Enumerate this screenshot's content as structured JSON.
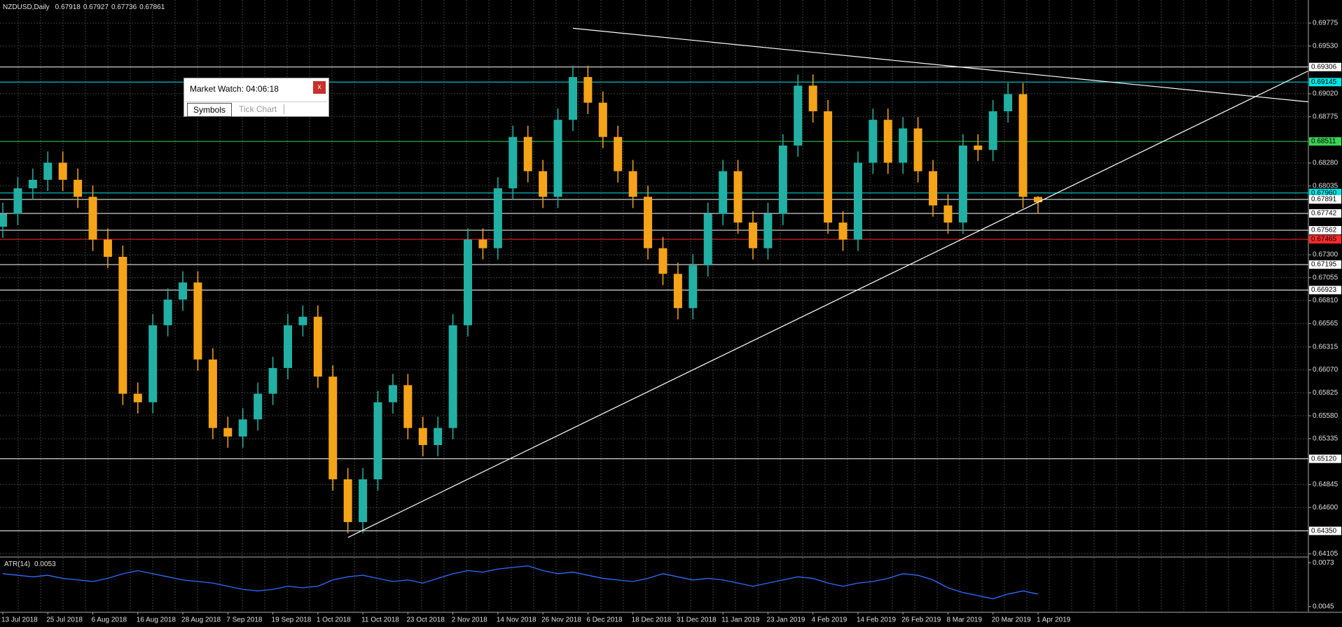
{
  "chart_data": {
    "type": "candlestick",
    "title": "NZDUSD,Daily",
    "categories": [
      "13 Jul 2018",
      null,
      null,
      "25 Jul 2018",
      null,
      null,
      "6 Aug 2018",
      null,
      null,
      "16 Aug 2018",
      null,
      null,
      "28 Aug 2018",
      null,
      null,
      "7 Sep 2018",
      null,
      null,
      "19 Sep 2018",
      null,
      null,
      "1 Oct 2018",
      null,
      null,
      "11 Oct 2018",
      null,
      null,
      "23 Oct 2018",
      null,
      null,
      "2 Nov 2018",
      null,
      null,
      "14 Nov 2018",
      null,
      null,
      "26 Nov 2018",
      null,
      null,
      "6 Dec 2018",
      null,
      null,
      "18 Dec 2018",
      null,
      null,
      "31 Dec 2018",
      null,
      null,
      "11 Jan 2019",
      null,
      null,
      "23 Jan 2019",
      null,
      null,
      "4 Feb 2019",
      null,
      null,
      "14 Feb 2019",
      null,
      null,
      "26 Feb 2019",
      null,
      null,
      "8 Mar 2019",
      null,
      null,
      "20 Mar 2019",
      null,
      null,
      "1 Apr 2019"
    ],
    "open": [
      0.676,
      0.67736,
      0.6801,
      0.68101,
      0.68284,
      0.68101,
      0.67919,
      0.67461,
      0.67278,
      0.65815,
      0.65724,
      0.66547,
      0.66821,
      0.67004,
      0.66181,
      0.65449,
      0.65358,
      0.65541,
      0.65815,
      0.6609,
      0.66547,
      0.66638,
      0.65998,
      0.64901,
      0.64444,
      0.64901,
      0.65724,
      0.65907,
      0.65449,
      0.65267,
      0.65449,
      0.66547,
      0.67461,
      0.6737,
      0.6801,
      0.68559,
      0.68193,
      0.67919,
      0.68742,
      0.69199,
      0.68925,
      0.68559,
      0.68193,
      0.67919,
      0.6737,
      0.67096,
      0.6673,
      0.67187,
      0.67736,
      0.68193,
      0.67644,
      0.6737,
      0.67736,
      0.68467,
      0.69107,
      0.68833,
      0.67644,
      0.67461,
      0.68284,
      0.68742,
      0.68284,
      0.6865,
      0.68193,
      0.67827,
      0.67644,
      0.68467,
      0.6842,
      0.68833,
      0.69016,
      0.67918
    ],
    "high": [
      0.67856,
      0.6813,
      0.68221,
      0.68404,
      0.68404,
      0.68221,
      0.68039,
      0.67581,
      0.67398,
      0.65935,
      0.66667,
      0.66941,
      0.67124,
      0.67124,
      0.66301,
      0.65569,
      0.65661,
      0.65935,
      0.6621,
      0.66667,
      0.66758,
      0.66758,
      0.66118,
      0.65021,
      0.65021,
      0.65844,
      0.66027,
      0.66027,
      0.65569,
      0.65569,
      0.66667,
      0.67581,
      0.67581,
      0.6813,
      0.68679,
      0.68679,
      0.68313,
      0.68862,
      0.69319,
      0.69319,
      0.69045,
      0.68679,
      0.68313,
      0.68039,
      0.6749,
      0.67216,
      0.67307,
      0.67856,
      0.68313,
      0.68313,
      0.67764,
      0.67856,
      0.68587,
      0.69227,
      0.69227,
      0.68953,
      0.67764,
      0.68404,
      0.68862,
      0.68862,
      0.6877,
      0.6877,
      0.68313,
      0.67947,
      0.68587,
      0.68587,
      0.68953,
      0.69136,
      0.69136,
      0.67927
    ],
    "low": [
      0.6748,
      0.67616,
      0.6789,
      0.67981,
      0.67981,
      0.67799,
      0.67341,
      0.67158,
      0.65695,
      0.65604,
      0.65604,
      0.66427,
      0.66701,
      0.66061,
      0.65329,
      0.65238,
      0.65238,
      0.65421,
      0.65695,
      0.6597,
      0.66427,
      0.65878,
      0.64781,
      0.64324,
      0.64324,
      0.64781,
      0.65604,
      0.65329,
      0.65147,
      0.65147,
      0.65329,
      0.66427,
      0.6725,
      0.6725,
      0.6789,
      0.68073,
      0.67799,
      0.67799,
      0.68622,
      0.68805,
      0.68439,
      0.68073,
      0.67799,
      0.6725,
      0.66976,
      0.6661,
      0.6661,
      0.67067,
      0.67616,
      0.67524,
      0.6725,
      0.6725,
      0.67616,
      0.68347,
      0.68713,
      0.67524,
      0.67341,
      0.67341,
      0.68164,
      0.68164,
      0.68164,
      0.68073,
      0.67707,
      0.67524,
      0.67524,
      0.683,
      0.683,
      0.68713,
      0.67799,
      0.67736
    ],
    "close": [
      0.67736,
      0.6801,
      0.68101,
      0.68284,
      0.68101,
      0.67919,
      0.67461,
      0.67278,
      0.65815,
      0.65724,
      0.66547,
      0.66821,
      0.67004,
      0.66181,
      0.65449,
      0.65358,
      0.65541,
      0.65815,
      0.6609,
      0.66547,
      0.66638,
      0.65998,
      0.64901,
      0.64444,
      0.64901,
      0.65724,
      0.65907,
      0.65449,
      0.65267,
      0.65449,
      0.66547,
      0.67461,
      0.6737,
      0.6801,
      0.68559,
      0.68193,
      0.67919,
      0.68742,
      0.69199,
      0.68925,
      0.68559,
      0.68193,
      0.67919,
      0.6737,
      0.67096,
      0.6673,
      0.67187,
      0.67736,
      0.68193,
      0.67644,
      0.6737,
      0.67736,
      0.68467,
      0.69107,
      0.68833,
      0.67644,
      0.67461,
      0.68284,
      0.68742,
      0.68284,
      0.6865,
      0.68193,
      0.67827,
      0.67644,
      0.68467,
      0.6842,
      0.68833,
      0.69016,
      0.67919,
      0.67861
    ],
    "up_color": "#22b0a4",
    "down_color": "#f5a318",
    "ylim": [
      0.64078,
      0.70022
    ],
    "yticks": [
      0.69775,
      {
        "value": 0.6953,
        "label": "0.69530"
      },
      {
        "value": 0.6902,
        "label": "0.69020"
      },
      0.68775,
      {
        "value": 0.6828,
        "label": "0.68280"
      },
      0.68035,
      {
        "value": 0.673,
        "label": "0.67300"
      },
      0.67055,
      {
        "value": 0.6681,
        "label": "0.66810"
      },
      0.66565,
      0.66315,
      {
        "value": 0.6607,
        "label": "0.66070"
      },
      0.65825,
      {
        "value": 0.6558,
        "label": "0.65580"
      },
      0.65335,
      0.64845,
      {
        "value": 0.646,
        "label": "0.64600"
      },
      0.64105
    ],
    "grid": true,
    "levels": [
      {
        "value": 0.69306,
        "color": "#ffffff"
      },
      {
        "value": 0.69145,
        "color": "#00e5e5"
      },
      {
        "value": 0.68511,
        "color": "#39d353"
      },
      {
        "value": 0.6796,
        "label": "0.67960",
        "color": "#00e5e5"
      },
      {
        "value": 0.67891,
        "color": "#ffffff"
      },
      {
        "value": 0.67742,
        "color": "#ffffff"
      },
      {
        "value": 0.67562,
        "color": "#ffffff"
      },
      {
        "value": 0.67465,
        "color": "#ff2a2a"
      },
      {
        "value": 0.67195,
        "color": "#ffffff"
      },
      {
        "value": 0.66923,
        "color": "#ffffff"
      },
      {
        "value": 0.6512,
        "label": "0.65120",
        "color": "#ffffff"
      },
      {
        "value": 0.6435,
        "label": "0.64350",
        "color": "#ffffff"
      }
    ],
    "trendlines": [
      {
        "x": [
          38,
          87
        ],
        "values": [
          0.6972,
          0.68934
        ],
        "color": "#ffffff"
      },
      {
        "x": [
          23,
          87
        ],
        "values": [
          0.64279,
          0.69263
        ],
        "color": "#ffffff"
      }
    ],
    "indicator": {
      "name": "ATR(14)",
      "type": "line",
      "color": "#2f6bff",
      "values": [
        0.0066,
        0.0065,
        0.0064,
        0.0065,
        0.0063,
        0.0062,
        0.0061,
        0.0063,
        0.0066,
        0.0068,
        0.0066,
        0.0064,
        0.0062,
        0.0061,
        0.006,
        0.0058,
        0.0056,
        0.0055,
        0.0056,
        0.0058,
        0.0057,
        0.0058,
        0.0062,
        0.0064,
        0.0065,
        0.0063,
        0.0061,
        0.0062,
        0.006,
        0.0063,
        0.0066,
        0.0068,
        0.0067,
        0.0069,
        0.007,
        0.0071,
        0.0068,
        0.0066,
        0.0067,
        0.0065,
        0.0063,
        0.0062,
        0.0061,
        0.0063,
        0.0066,
        0.0064,
        0.0062,
        0.0063,
        0.0062,
        0.006,
        0.0058,
        0.006,
        0.0062,
        0.0064,
        0.0063,
        0.006,
        0.0058,
        0.006,
        0.0061,
        0.0063,
        0.0066,
        0.0065,
        0.0062,
        0.0057,
        0.0054,
        0.0052,
        0.005,
        0.0053,
        0.0055,
        0.0053
      ],
      "ylim": [
        0.00418,
        0.00762
      ],
      "yticks": [
        0.0073,
        0.0045
      ]
    }
  },
  "window": {
    "market_watch": {
      "title": "Market Watch: 04:06:18",
      "close": "x",
      "tabs": [
        "Symbols",
        "Tick Chart"
      ]
    }
  }
}
